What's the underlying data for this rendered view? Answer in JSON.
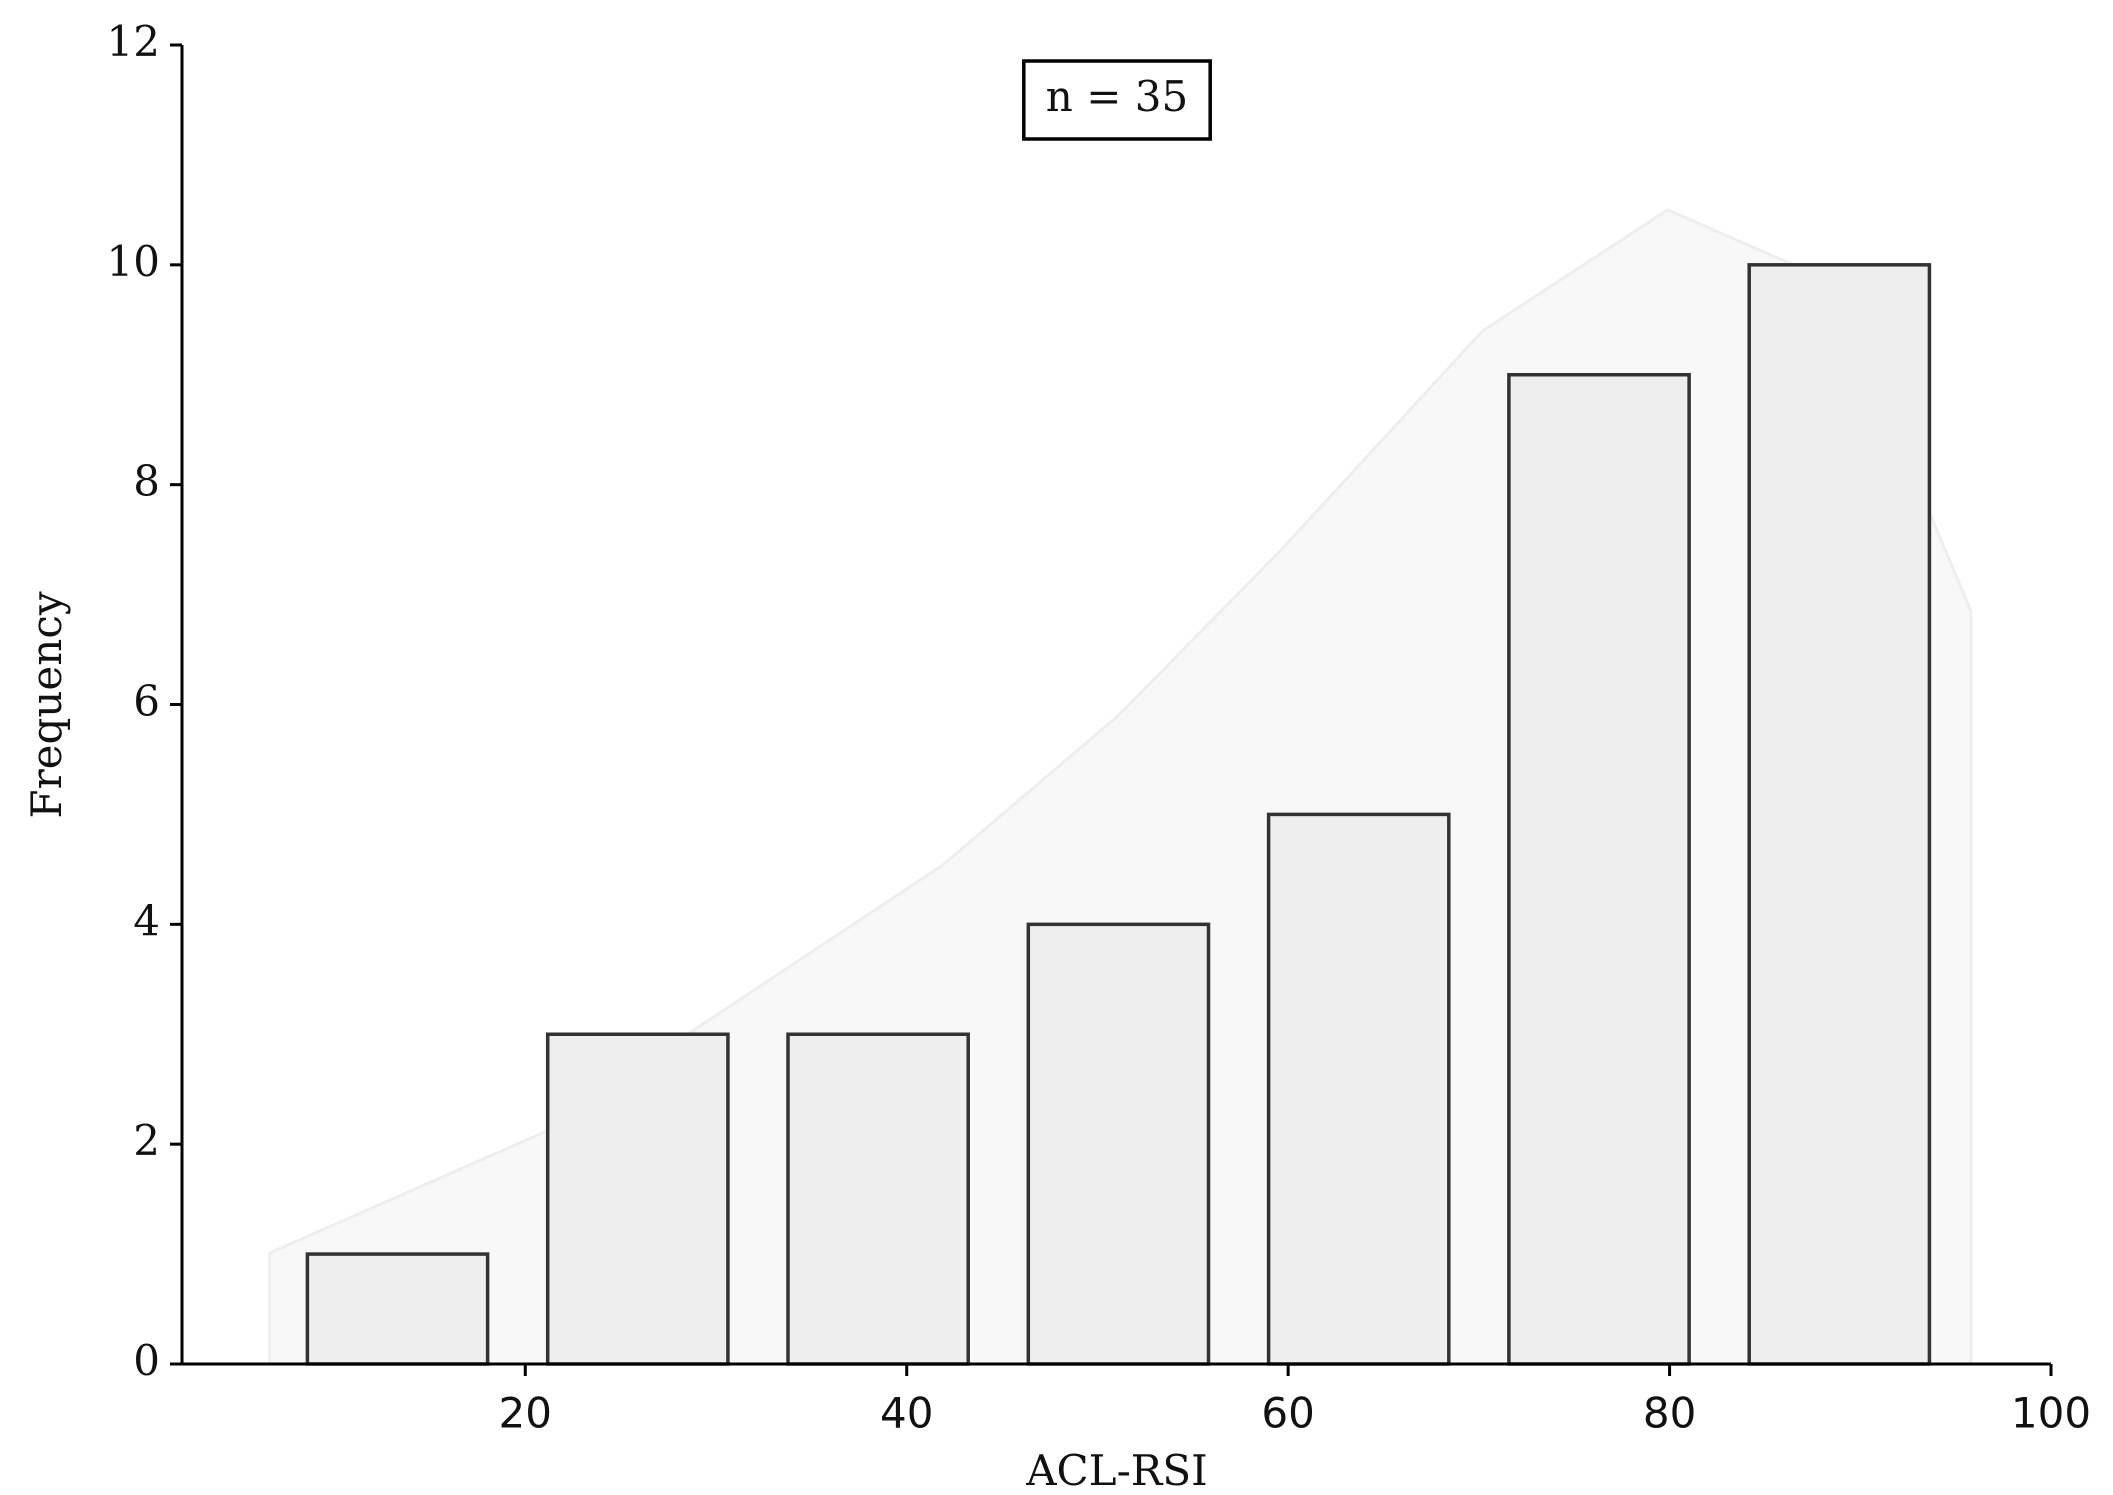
{
  "chart_data": {
    "type": "histogram",
    "xlabel": "ACL-RSI",
    "ylabel": "Frequency",
    "annotation": "n = 35",
    "bins": [
      7.0,
      19.6,
      32.2,
      44.8,
      57.4,
      70.0,
      82.6,
      95.2
    ],
    "values": [
      1,
      3,
      3,
      4,
      5,
      9,
      10
    ],
    "color": "#eeeeee",
    "edgecolor": "#333333",
    "kde": {
      "x": [
        6.6,
        21.4,
        28.5,
        41.9,
        51.1,
        59.6,
        70.2,
        79.9,
        86.5,
        93.5,
        95.8
      ],
      "y": [
        1.01,
        2.14,
        3.0,
        4.54,
        5.9,
        7.4,
        9.4,
        10.5,
        10.0,
        7.8,
        6.85
      ],
      "color": "#f8f8f8",
      "edgecolor": "#eeeeee"
    },
    "xlim": [
      2,
      100
    ],
    "ylim": [
      0,
      12
    ],
    "xticks": [
      20,
      40,
      60,
      80,
      100
    ],
    "yticks": [
      0,
      2,
      4,
      6,
      8,
      10,
      12
    ]
  }
}
